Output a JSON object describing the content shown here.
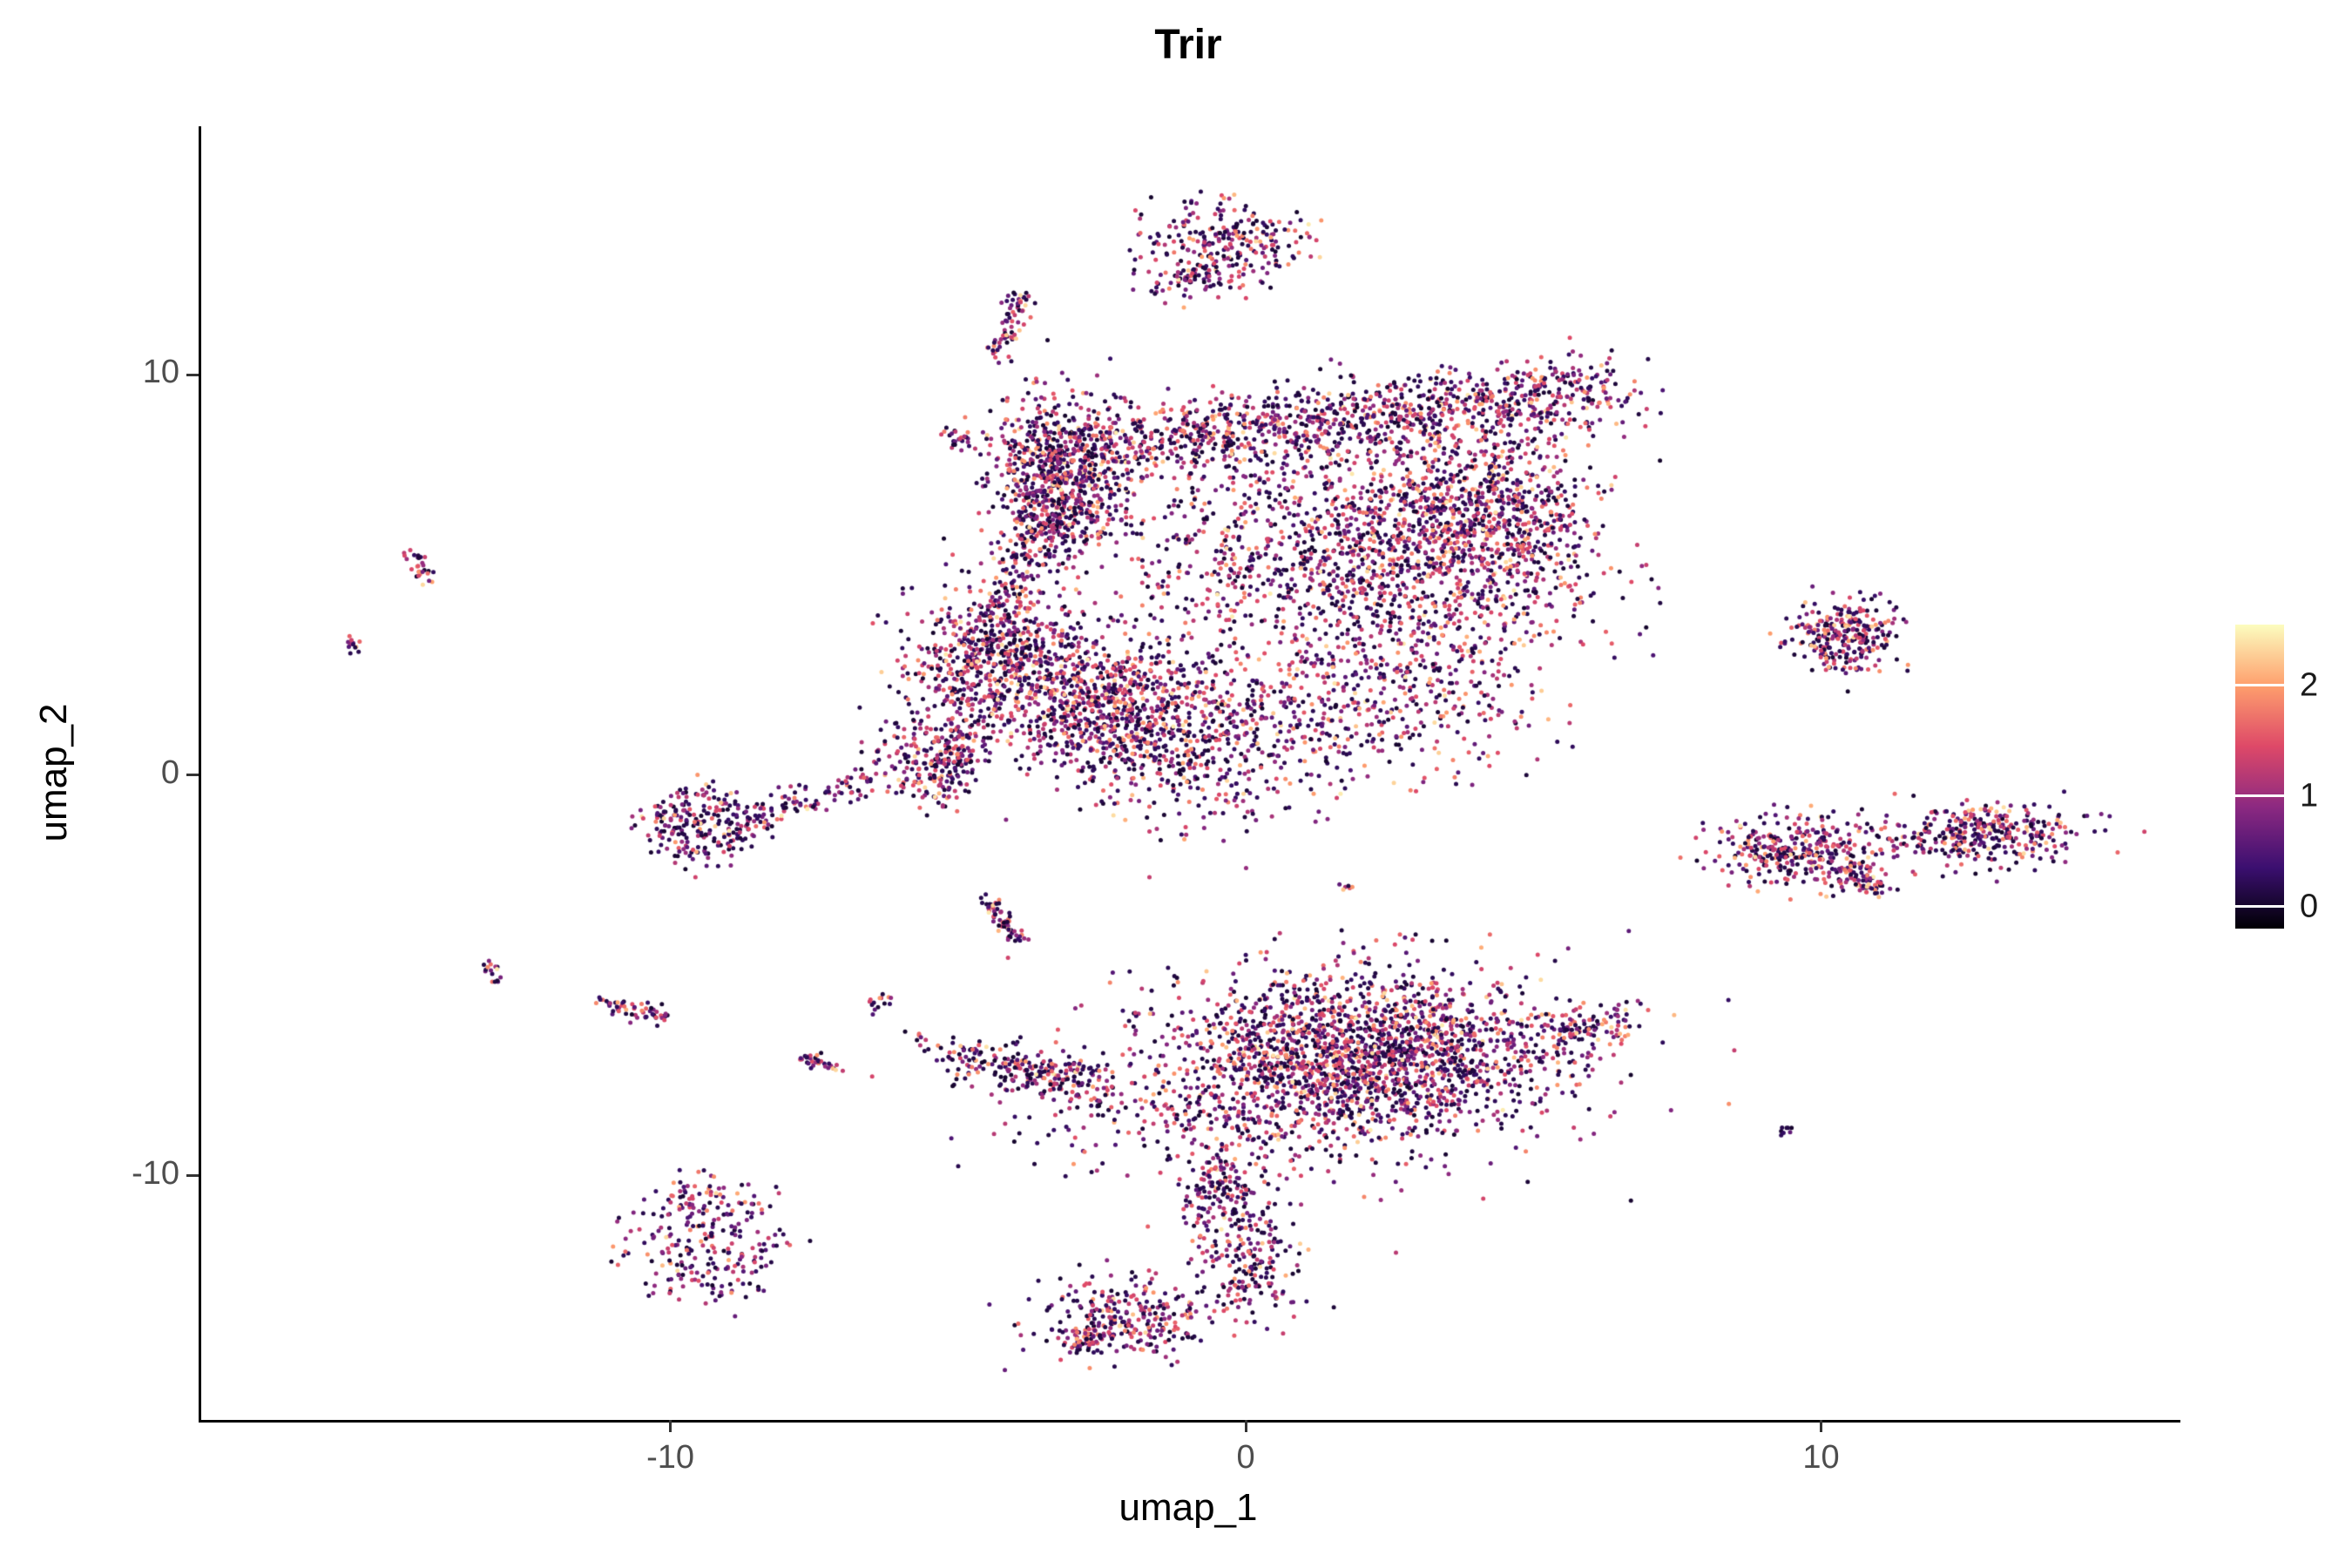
{
  "figure": {
    "title": "Trir"
  },
  "chart_data": {
    "type": "scatter",
    "title": "Trir",
    "xlabel": "umap_1",
    "ylabel": "umap_2",
    "xlim": [
      -18.2,
      16.2
    ],
    "ylim": [
      -16.1,
      16.2
    ],
    "x_ticks": [
      -10,
      0,
      10
    ],
    "y_ticks": [
      -10,
      0,
      10
    ],
    "grid": false,
    "legend_position": "right",
    "point_radius": 2.5,
    "seed": 20240611,
    "colorbar": {
      "ticks": [
        0,
        1,
        2
      ],
      "domain": [
        -0.2,
        2.55
      ],
      "palette": "magma",
      "palette_stops": [
        [
          0.0,
          "#000004"
        ],
        [
          0.2,
          "#3b0f70"
        ],
        [
          0.4,
          "#8c2981"
        ],
        [
          0.6,
          "#de4968"
        ],
        [
          0.8,
          "#fe9f6d"
        ],
        [
          1.0,
          "#fcfdbf"
        ]
      ]
    },
    "value_mix": [
      {
        "p": 0.4,
        "lo": 0.0,
        "hi": 0.3
      },
      {
        "p": 0.38,
        "lo": 0.45,
        "hi": 1.45
      },
      {
        "p": 0.17,
        "lo": 1.35,
        "hi": 2.0
      },
      {
        "p": 0.05,
        "lo": 2.0,
        "hi": 2.45
      }
    ],
    "clusters": [
      {
        "type": "blob",
        "cx": -0.4,
        "cy": 13.35,
        "sx": 0.75,
        "sy": 0.5,
        "n": 240
      },
      {
        "type": "blob",
        "cx": -0.9,
        "cy": 12.35,
        "sx": 0.45,
        "sy": 0.25,
        "n": 70
      },
      {
        "type": "streak",
        "x1": -3.85,
        "y1": 12.0,
        "x2": -4.35,
        "y2": 10.45,
        "w": 0.12,
        "n": 70
      },
      {
        "type": "streak",
        "x1": -5.3,
        "y1": 8.6,
        "x2": -4.7,
        "y2": 8.2,
        "w": 0.1,
        "n": 25
      },
      {
        "type": "blob",
        "cx": -3.3,
        "cy": 7.4,
        "sx": 0.6,
        "sy": 1.0,
        "n": 800
      },
      {
        "type": "streak",
        "x1": -3.0,
        "y1": 8.2,
        "x2": 6.3,
        "y2": 9.6,
        "w": 0.45,
        "n": 1100
      },
      {
        "type": "blob",
        "cx": 2.8,
        "cy": 5.6,
        "sx": 1.5,
        "sy": 1.5,
        "n": 1300
      },
      {
        "type": "blob",
        "cx": 4.4,
        "cy": 6.6,
        "sx": 0.9,
        "sy": 1.2,
        "n": 550
      },
      {
        "type": "blob",
        "cx": -0.3,
        "cy": 5.6,
        "sx": 1.2,
        "sy": 1.2,
        "n": 280
      },
      {
        "type": "streak",
        "x1": -3.4,
        "y1": 6.3,
        "x2": -4.6,
        "y2": 3.2,
        "w": 0.3,
        "n": 160
      },
      {
        "type": "blob",
        "cx": -4.3,
        "cy": 2.9,
        "sx": 0.85,
        "sy": 0.85,
        "n": 650
      },
      {
        "type": "blob",
        "cx": -2.5,
        "cy": 1.7,
        "sx": 0.8,
        "sy": 0.9,
        "n": 600
      },
      {
        "type": "streak",
        "x1": -4.7,
        "y1": 1.5,
        "x2": -5.5,
        "y2": -0.4,
        "w": 0.3,
        "n": 140
      },
      {
        "type": "blob",
        "cx": -0.8,
        "cy": 1.0,
        "sx": 1.1,
        "sy": 1.2,
        "n": 550
      },
      {
        "type": "blob",
        "cx": 2.3,
        "cy": 2.0,
        "sx": 1.4,
        "sy": 1.0,
        "n": 420
      },
      {
        "type": "ring",
        "cx": -9.5,
        "cy": -1.2,
        "rx": 0.65,
        "ry": 0.6,
        "w": 0.3,
        "n": 240
      },
      {
        "type": "streak",
        "x1": -8.6,
        "y1": -1.1,
        "x2": -6.6,
        "y2": -0.1,
        "w": 0.18,
        "n": 90
      },
      {
        "type": "blob",
        "cx": -5.6,
        "cy": 0.3,
        "sx": 0.55,
        "sy": 0.55,
        "n": 160
      },
      {
        "type": "streak",
        "x1": -14.6,
        "y1": 5.7,
        "x2": -14.2,
        "y2": 4.9,
        "w": 0.1,
        "n": 28
      },
      {
        "type": "streak",
        "x1": -15.6,
        "y1": 3.5,
        "x2": -15.4,
        "y2": 3.1,
        "w": 0.08,
        "n": 12
      },
      {
        "type": "streak",
        "x1": -13.2,
        "y1": -4.7,
        "x2": -13.0,
        "y2": -5.1,
        "w": 0.08,
        "n": 16
      },
      {
        "type": "streak",
        "x1": -11.2,
        "y1": -5.6,
        "x2": -10.1,
        "y2": -6.1,
        "w": 0.12,
        "n": 55
      },
      {
        "type": "streak",
        "x1": -7.7,
        "y1": -7.0,
        "x2": -7.0,
        "y2": -7.4,
        "w": 0.1,
        "n": 32
      },
      {
        "type": "blob",
        "cx": -6.4,
        "cy": -5.7,
        "sx": 0.14,
        "sy": 0.14,
        "n": 14
      },
      {
        "type": "blob",
        "cx": -5.7,
        "cy": -6.5,
        "sx": 0.1,
        "sy": 0.1,
        "n": 6
      },
      {
        "type": "streak",
        "x1": -4.5,
        "y1": -3.1,
        "x2": -3.9,
        "y2": -4.2,
        "w": 0.1,
        "n": 70
      },
      {
        "type": "blob",
        "cx": 1.75,
        "cy": -2.8,
        "sx": 0.07,
        "sy": 0.07,
        "n": 6
      },
      {
        "type": "blob",
        "cx": 2.2,
        "cy": -6.7,
        "sx": 1.7,
        "sy": 0.95,
        "n": 1500
      },
      {
        "type": "blob",
        "cx": 0.9,
        "cy": -7.9,
        "sx": 2.1,
        "sy": 1.1,
        "n": 850
      },
      {
        "type": "streak",
        "x1": 5.2,
        "y1": -6.6,
        "x2": 6.7,
        "y2": -6.0,
        "w": 0.3,
        "n": 110
      },
      {
        "type": "streak",
        "x1": -2.5,
        "y1": -7.7,
        "x2": -5.2,
        "y2": -7.0,
        "w": 0.3,
        "n": 240
      },
      {
        "type": "streak",
        "x1": -0.5,
        "y1": -9.6,
        "x2": 0.2,
        "y2": -13.0,
        "w": 0.45,
        "n": 330
      },
      {
        "type": "blob",
        "cx": -1.9,
        "cy": -13.5,
        "sx": 0.8,
        "sy": 0.5,
        "n": 260
      },
      {
        "type": "streak",
        "x1": -2.2,
        "y1": -13.7,
        "x2": -3.1,
        "y2": -14.4,
        "w": 0.2,
        "n": 70
      },
      {
        "type": "ring",
        "cx": -9.3,
        "cy": -11.6,
        "rx": 0.85,
        "ry": 1.0,
        "w": 0.4,
        "n": 260
      },
      {
        "type": "blob",
        "cx": -9.8,
        "cy": -10.3,
        "sx": 0.2,
        "sy": 0.1,
        "n": 10
      },
      {
        "type": "blob",
        "cx": 10.4,
        "cy": 3.5,
        "sx": 0.5,
        "sy": 0.45,
        "n": 280
      },
      {
        "type": "blob",
        "cx": 9.6,
        "cy": -1.9,
        "sx": 0.75,
        "sy": 0.45,
        "n": 330
      },
      {
        "type": "streak",
        "x1": 10.3,
        "y1": -2.3,
        "x2": 11.0,
        "y2": -2.9,
        "w": 0.18,
        "n": 70
      },
      {
        "type": "streak",
        "x1": 11.0,
        "y1": -1.8,
        "x2": 12.0,
        "y2": -1.6,
        "w": 0.1,
        "n": 12
      },
      {
        "type": "blob",
        "cx": 12.9,
        "cy": -1.45,
        "sx": 0.9,
        "sy": 0.38,
        "n": 340
      },
      {
        "type": "blob",
        "cx": 9.4,
        "cy": -8.9,
        "sx": 0.1,
        "sy": 0.08,
        "n": 8
      }
    ]
  }
}
